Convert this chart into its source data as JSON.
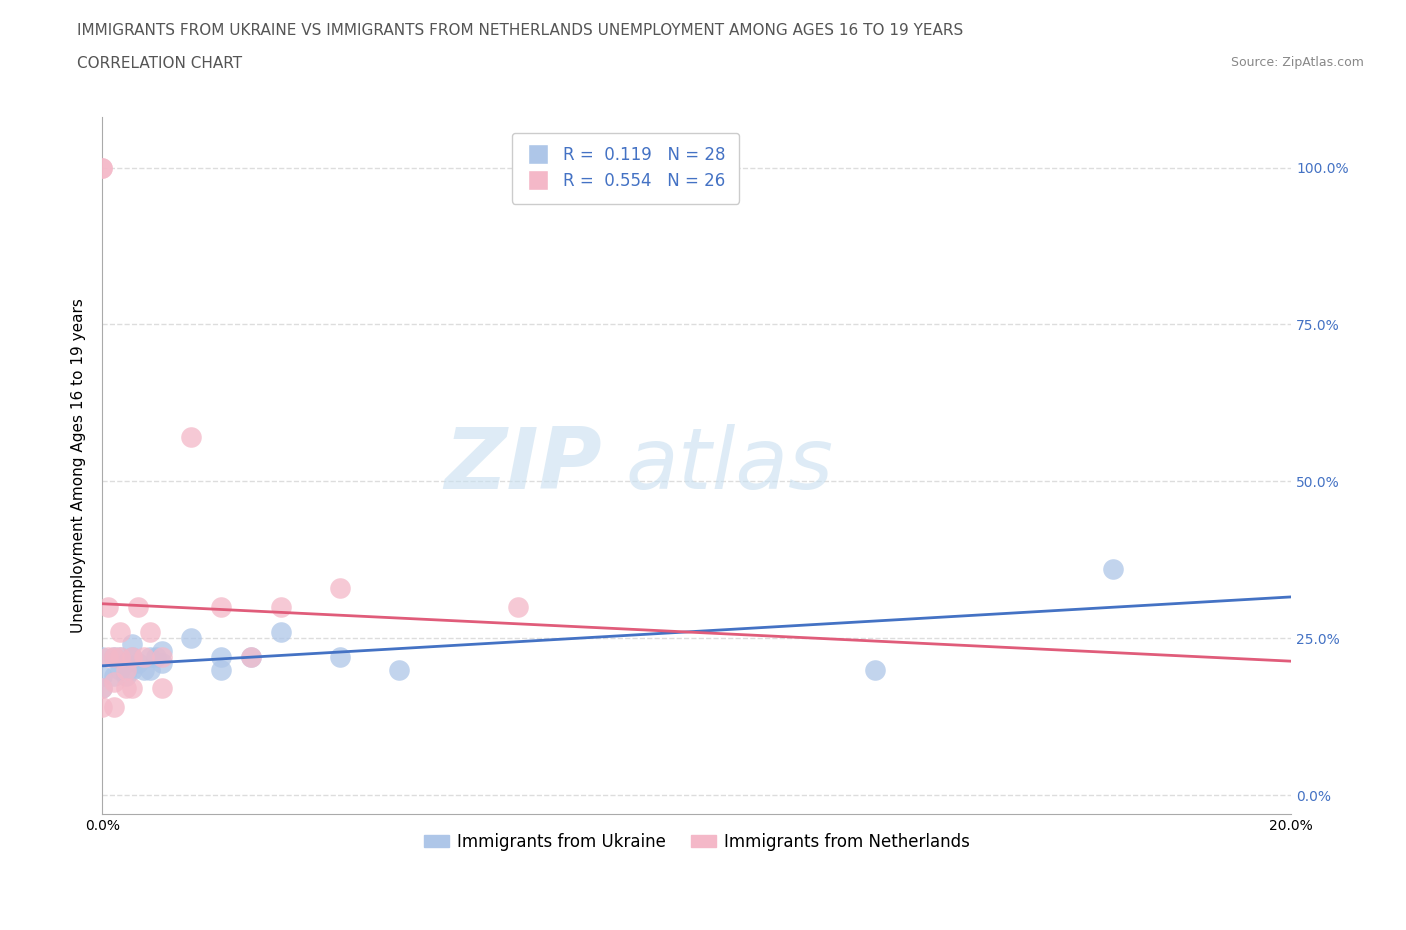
{
  "title_line1": "IMMIGRANTS FROM UKRAINE VS IMMIGRANTS FROM NETHERLANDS UNEMPLOYMENT AMONG AGES 16 TO 19 YEARS",
  "title_line2": "CORRELATION CHART",
  "source_text": "Source: ZipAtlas.com",
  "ylabel": "Unemployment Among Ages 16 to 19 years",
  "xlim": [
    0.0,
    0.2
  ],
  "ylim": [
    -0.05,
    1.1
  ],
  "yticks": [
    0.0,
    0.25,
    0.5,
    0.75,
    1.0
  ],
  "ytick_labels": [
    "0.0%",
    "25.0%",
    "50.0%",
    "75.0%",
    "100.0%"
  ],
  "xticks": [
    0.0,
    0.05,
    0.1,
    0.15,
    0.2
  ],
  "xtick_labels": [
    "0.0%",
    "",
    "",
    "",
    "20.0%"
  ],
  "ukraine_color": "#aec6e8",
  "netherlands_color": "#f4b8c8",
  "ukraine_line_color": "#4472c4",
  "netherlands_line_color": "#e05c7a",
  "R_ukraine": 0.119,
  "N_ukraine": 28,
  "R_netherlands": 0.554,
  "N_netherlands": 26,
  "legend_label_ukraine": "Immigrants from Ukraine",
  "legend_label_netherlands": "Immigrants from Netherlands",
  "watermark_zip": "ZIP",
  "watermark_atlas": "atlas",
  "ukraine_x": [
    0.0,
    0.0,
    0.0,
    0.002,
    0.002,
    0.003,
    0.003,
    0.004,
    0.004,
    0.005,
    0.005,
    0.005,
    0.006,
    0.007,
    0.008,
    0.008,
    0.009,
    0.01,
    0.01,
    0.015,
    0.02,
    0.02,
    0.025,
    0.03,
    0.04,
    0.05,
    0.13,
    0.17
  ],
  "ukraine_y": [
    0.17,
    0.19,
    0.22,
    0.19,
    0.22,
    0.2,
    0.22,
    0.19,
    0.21,
    0.2,
    0.22,
    0.24,
    0.21,
    0.2,
    0.2,
    0.22,
    0.22,
    0.21,
    0.23,
    0.25,
    0.2,
    0.22,
    0.22,
    0.26,
    0.22,
    0.2,
    0.2,
    0.36
  ],
  "netherlands_x": [
    0.0,
    0.0,
    0.0,
    0.0,
    0.001,
    0.001,
    0.002,
    0.002,
    0.002,
    0.003,
    0.003,
    0.004,
    0.004,
    0.005,
    0.005,
    0.006,
    0.007,
    0.008,
    0.01,
    0.01,
    0.015,
    0.02,
    0.025,
    0.03,
    0.04,
    0.07
  ],
  "netherlands_y": [
    1.0,
    1.0,
    0.17,
    0.14,
    0.3,
    0.22,
    0.22,
    0.18,
    0.14,
    0.22,
    0.26,
    0.2,
    0.17,
    0.22,
    0.17,
    0.3,
    0.22,
    0.26,
    0.22,
    0.17,
    0.57,
    0.3,
    0.22,
    0.3,
    0.33,
    0.3
  ],
  "background_color": "#ffffff",
  "grid_color": "#dddddd",
  "title_fontsize": 11,
  "axis_label_fontsize": 11,
  "tick_fontsize": 10,
  "legend_fontsize": 12,
  "right_ytick_color": "#4472c4"
}
